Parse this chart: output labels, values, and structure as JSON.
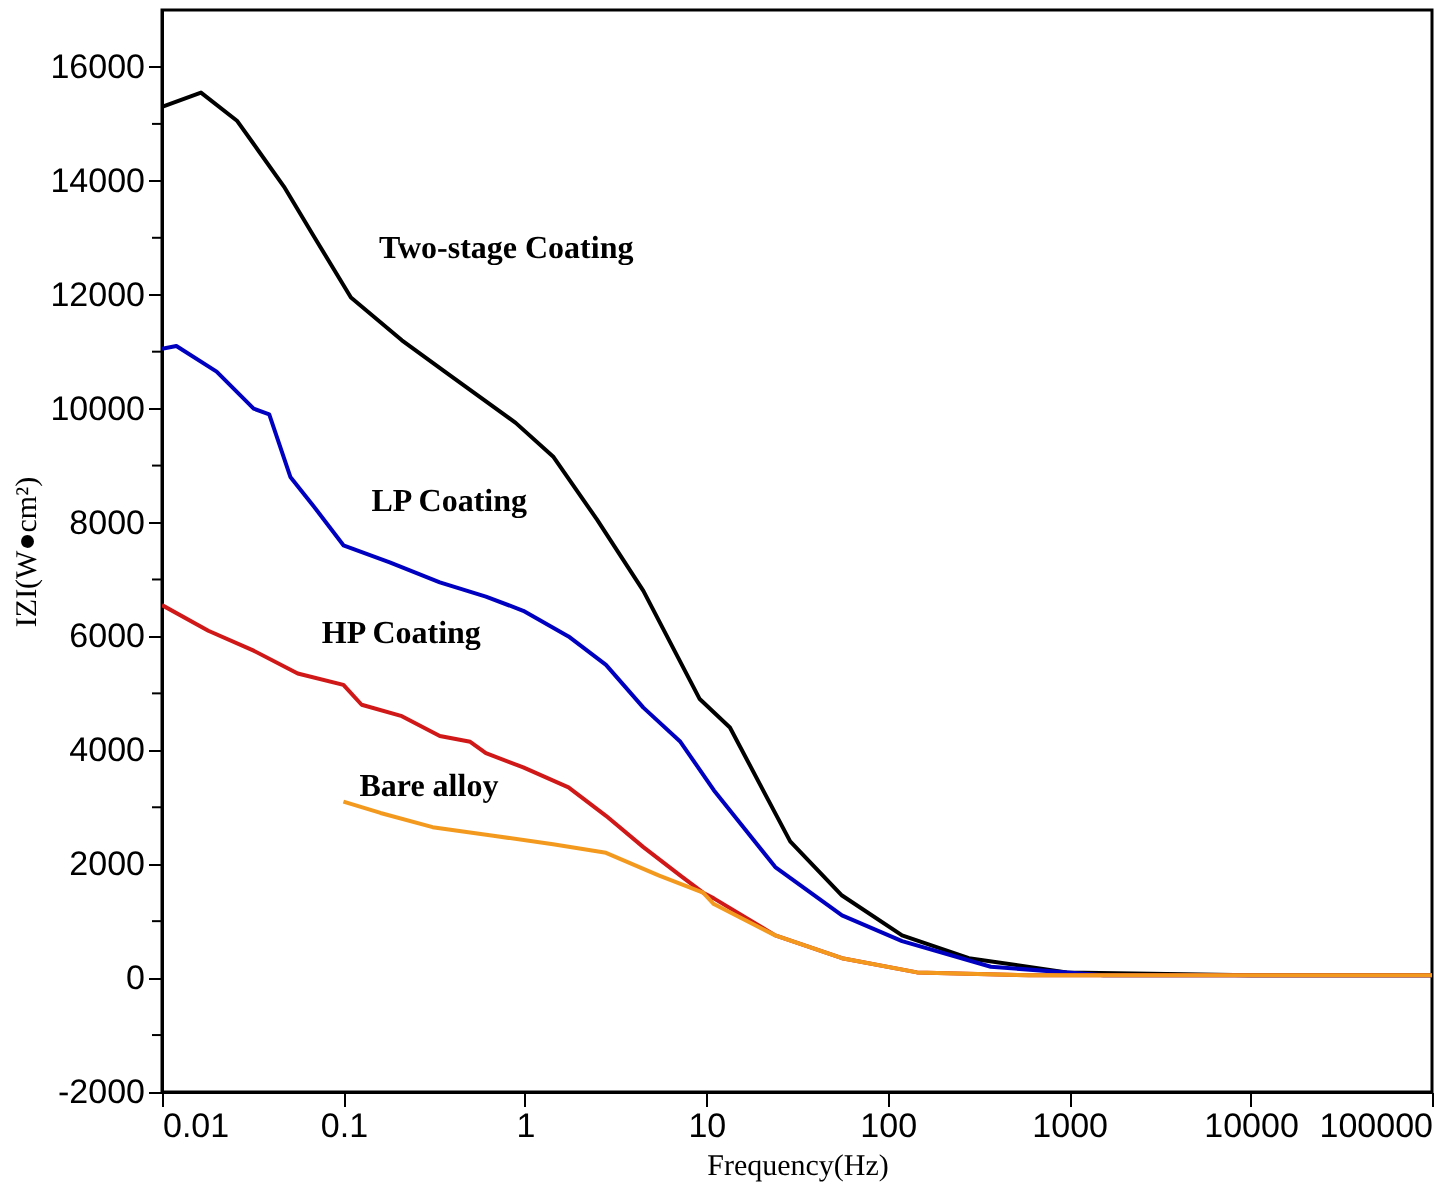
{
  "chart_data": {
    "type": "line",
    "xlabel": "Frequency(Hz)",
    "ylabel": "IZI(W●cm²)",
    "log": "x",
    "grid": false,
    "legend": false,
    "line_style": "solid",
    "marker": "none",
    "xlim": [
      0.01,
      100000
    ],
    "xticks": [
      {
        "value": 0.01,
        "label": "0.01"
      },
      {
        "value": 0.1,
        "label": "0.1"
      },
      1,
      10,
      100,
      1000,
      10000,
      100000
    ],
    "ylim": [
      -2000,
      17000
    ],
    "yticks": [
      -2000,
      {
        "value": -1000,
        "label": null
      },
      0,
      {
        "value": 1000,
        "label": null
      },
      2000,
      {
        "value": 3000,
        "label": null
      },
      4000,
      {
        "value": 5000,
        "label": null
      },
      6000,
      {
        "value": 7000,
        "label": null
      },
      8000,
      {
        "value": 9000,
        "label": null
      },
      10000,
      {
        "value": 11000,
        "label": null
      },
      12000,
      {
        "value": 13000,
        "label": null
      },
      14000,
      {
        "value": 15000,
        "label": null
      },
      16000
    ],
    "series": [
      {
        "name": "Two-stage Coating",
        "color": "#000000",
        "x": [
          0.01,
          0.0164,
          0.026,
          0.047,
          0.068,
          0.11,
          0.21,
          0.38,
          0.89,
          1.44,
          2.5,
          4.5,
          9.2,
          13.5,
          29,
          56,
          120,
          280,
          970,
          10000,
          100000
        ],
        "values": [
          15300,
          15550,
          15050,
          13900,
          13050,
          11950,
          11200,
          10600,
          9750,
          9150,
          8050,
          6800,
          4900,
          4400,
          2400,
          1450,
          750,
          350,
          100,
          50,
          50
        ]
      },
      {
        "name": "LP Coating",
        "color": "#0000c0",
        "x": [
          0.01,
          0.012,
          0.02,
          0.032,
          0.039,
          0.051,
          0.068,
          0.1,
          0.18,
          0.34,
          0.61,
          0.98,
          1.74,
          2.8,
          4.5,
          7.2,
          11,
          24,
          56,
          120,
          370,
          1550,
          10000,
          100000
        ],
        "values": [
          11050,
          11100,
          10650,
          10000,
          9900,
          8800,
          8300,
          7600,
          7300,
          6950,
          6700,
          6450,
          6000,
          5500,
          4750,
          4150,
          3300,
          1950,
          1100,
          650,
          200,
          50,
          50,
          50
        ]
      },
      {
        "name": "HP Coating",
        "color": "#d01818",
        "x": [
          0.01,
          0.018,
          0.032,
          0.056,
          0.1,
          0.126,
          0.21,
          0.34,
          0.5,
          0.61,
          0.98,
          1.74,
          2.8,
          4.5,
          7.2,
          9.6,
          11,
          24,
          56,
          145,
          600,
          10000,
          100000
        ],
        "values": [
          6550,
          6100,
          5750,
          5350,
          5150,
          4800,
          4600,
          4250,
          4150,
          3950,
          3700,
          3350,
          2850,
          2300,
          1800,
          1500,
          1400,
          750,
          350,
          100,
          50,
          50,
          50
        ]
      },
      {
        "name": "Bare alloy",
        "color": "#f39a1e",
        "x": [
          0.1,
          0.16,
          0.31,
          0.67,
          1.43,
          2.8,
          5.5,
          9.6,
          11,
          24,
          56,
          145,
          600,
          10000,
          100000
        ],
        "values": [
          3100,
          2900,
          2650,
          2500,
          2350,
          2200,
          1800,
          1500,
          1300,
          750,
          350,
          100,
          50,
          50,
          50
        ]
      }
    ]
  }
}
